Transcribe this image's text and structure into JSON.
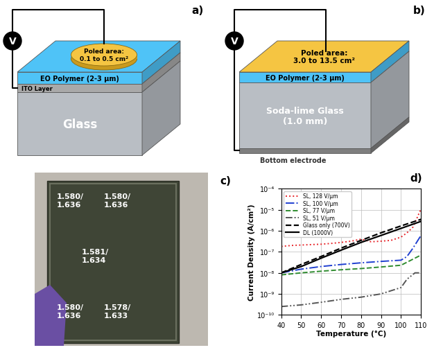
{
  "figure": {
    "panel_a": {
      "label": "a)",
      "voltage_symbol": "V",
      "poled_area": "Poled area:\n0.1 to 0.5 cm²",
      "layers": [
        "EO Polymer (2-3 μm)",
        "ITO Layer",
        "Glass"
      ]
    },
    "panel_b": {
      "label": "b)",
      "voltage_symbol": "V",
      "poled_area": "Poled area:\n3.0 to 13.5 cm²",
      "layers": [
        "EO Polymer (2-3 μm)",
        "Soda-lime Glass\n(1.0 mm)",
        "Bottom electrode"
      ]
    },
    "panel_c": {
      "label": "c)",
      "measurements": [
        "1.580/\n1.636",
        "1.580/\n1.636",
        "1.581/\n1.634",
        "1.580/\n1.636",
        "1.578/\n1.633"
      ]
    }
  },
  "chart_data": {
    "type": "line",
    "annotations": [
      "d)"
    ],
    "x_label": "Temperature (°C)",
    "y_label": "Current Density (A/cm²)",
    "log": "y",
    "grid": true,
    "legend": "upper left",
    "xlim": [
      40,
      110
    ],
    "xticks": [
      40,
      50,
      60,
      70,
      80,
      90,
      100,
      110
    ],
    "ylim": [
      1e-10,
      0.0001
    ],
    "yticks": [
      {
        "value": 1e-10,
        "label": "10⁻¹⁰"
      },
      {
        "value": 1e-09,
        "label": "10⁻⁹"
      },
      {
        "value": 1e-08,
        "label": "10⁻⁸"
      },
      {
        "value": 1e-07,
        "label": "10⁻⁷"
      },
      {
        "value": 1e-06,
        "label": "10⁻⁶"
      },
      {
        "value": 1e-05,
        "label": "10⁻⁵"
      },
      {
        "value": 0.0001,
        "label": "10⁻⁴"
      }
    ],
    "series": [
      {
        "name": "SL, 128 V/μm",
        "color": "#e8262b",
        "line_style": "dotted",
        "x": [
          40,
          45,
          50,
          55,
          60,
          65,
          70,
          75,
          80,
          85,
          90,
          95,
          100,
          103,
          106,
          108,
          110
        ],
        "values": [
          1.8e-07,
          2e-07,
          2.1e-07,
          2.2e-07,
          2.3e-07,
          2.5e-07,
          2.8e-07,
          3.2e-07,
          4e-07,
          3e-07,
          3.2e-07,
          3.5e-07,
          5e-07,
          8e-07,
          1.5e-06,
          4e-06,
          1.1e-05
        ]
      },
      {
        "name": "SL, 100 V/μm",
        "color": "#1f3fd0",
        "line_style": "dashdot",
        "x": [
          40,
          50,
          60,
          70,
          80,
          90,
          100,
          103,
          106,
          110
        ],
        "values": [
          1e-08,
          1.5e-08,
          2e-08,
          2.5e-08,
          3e-08,
          3.5e-08,
          4e-08,
          6e-08,
          1.5e-07,
          6e-07
        ]
      },
      {
        "name": "SL, 77 V/μm",
        "color": "#2e8b2e",
        "line_style": "dashed",
        "x": [
          40,
          50,
          60,
          70,
          80,
          90,
          100,
          105,
          110
        ],
        "values": [
          8e-09,
          1e-08,
          1.2e-08,
          1.4e-08,
          1.6e-08,
          1.9e-08,
          2.3e-08,
          4e-08,
          7e-08
        ]
      },
      {
        "name": "SL, 51 V/μm",
        "color": "#555555",
        "line_style": "dashdotdot",
        "x": [
          40,
          50,
          60,
          70,
          80,
          90,
          100,
          103,
          107,
          110
        ],
        "values": [
          2.5e-10,
          3e-10,
          4e-10,
          5.5e-10,
          7e-10,
          1e-09,
          2e-09,
          5e-09,
          1e-08,
          1e-08
        ]
      },
      {
        "name": "Glass only (700V)",
        "color": "#000000",
        "line_style": "dashed",
        "x": [
          40,
          50,
          60,
          70,
          80,
          90,
          100,
          110
        ],
        "values": [
          1e-08,
          2.5e-08,
          6e-08,
          1.5e-07,
          3.5e-07,
          8e-07,
          1.7e-06,
          3.5e-06
        ]
      },
      {
        "name": "DL (1000V)",
        "color": "#000000",
        "line_style": "solid",
        "x": [
          40,
          50,
          60,
          70,
          80,
          90,
          100,
          110
        ],
        "values": [
          1e-08,
          2e-08,
          5e-08,
          1.2e-07,
          2.8e-07,
          6e-07,
          1.3e-06,
          2.8e-06
        ]
      }
    ]
  }
}
